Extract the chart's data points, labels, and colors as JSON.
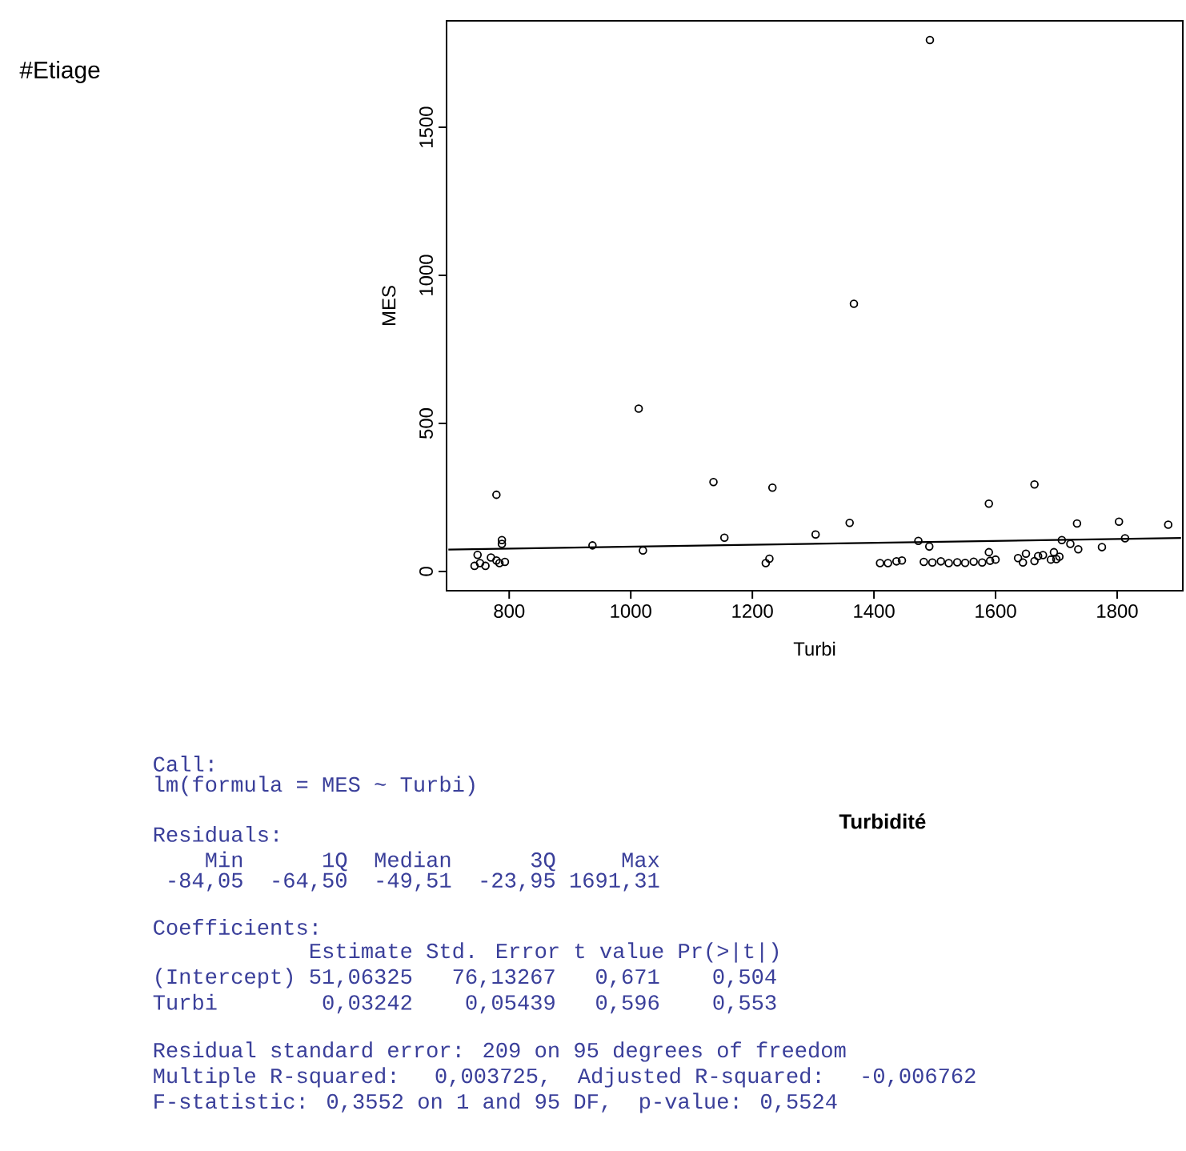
{
  "chart_data": {
    "type": "scatter",
    "title": "#Etiage",
    "xlabel": "Turbi",
    "ylabel": "MES",
    "xlim": [
      697,
      1908
    ],
    "ylim": [
      -65,
      1860
    ],
    "xticks": [
      800,
      1000,
      1200,
      1400,
      1600,
      1800
    ],
    "yticks": [
      0,
      500,
      1000,
      1500
    ],
    "series": [
      {
        "type": "scatter",
        "color": "#000000",
        "marker": "circle",
        "x": [
          1492,
          1367,
          1013,
          779,
          1136,
          1233,
          1664,
          1589,
          1734,
          1803,
          1884,
          1360,
          1304,
          1154,
          937,
          1020,
          1473,
          1491,
          1775,
          1813,
          1709,
          1723,
          1736,
          1696,
          1222,
          1228,
          743,
          752,
          761,
          748,
          770,
          784,
          788,
          788,
          779,
          793,
          1410,
          1423,
          1437,
          1446,
          1482,
          1496,
          1510,
          1523,
          1537,
          1550,
          1564,
          1578,
          1591,
          1600,
          1589,
          1637,
          1650,
          1664,
          1678,
          1691,
          1705,
          1645,
          1670,
          1700
        ],
        "values": [
          1795,
          904,
          550,
          259,
          302,
          283,
          294,
          229,
          162,
          168,
          158,
          164,
          125,
          114,
          88,
          71,
          103,
          84,
          82,
          112,
          106,
          93,
          75,
          65,
          28,
          43,
          19,
          28,
          19,
          56,
          47,
          28,
          93,
          106,
          37,
          32,
          28,
          28,
          34,
          37,
          32,
          30,
          34,
          28,
          31,
          29,
          33,
          30,
          36,
          40,
          65,
          45,
          60,
          35,
          55,
          40,
          50,
          30,
          52,
          42
        ]
      },
      {
        "type": "line",
        "color": "#000000",
        "line_style": "solid",
        "x": [
          700,
          1905
        ],
        "values": [
          74,
          113
        ]
      }
    ],
    "annotations": [
      "Turbidité",
      "Call:",
      "lm(formula = MES ~ Turbi)",
      "Residuals:",
      "    Min      1Q  Median      3Q     Max",
      " -84,05  -64,50  -49,51  -23,95 1691,31",
      "Coefficients:",
      "            Estimate Std. Error t value Pr(>|t|)",
      "(Intercept) 51,06325   76,13267   0,671    0,504",
      "Turbi        0,03242    0,05439   0,596    0,553",
      "Residual standard error: 209 on 95 degrees of freedom",
      "Multiple R-squared:  0,003725,  Adjusted R-squared:  -0,006762",
      "F-statistic: 0,3552 on 1 and 95 DF,  p-value: 0,5524"
    ]
  }
}
